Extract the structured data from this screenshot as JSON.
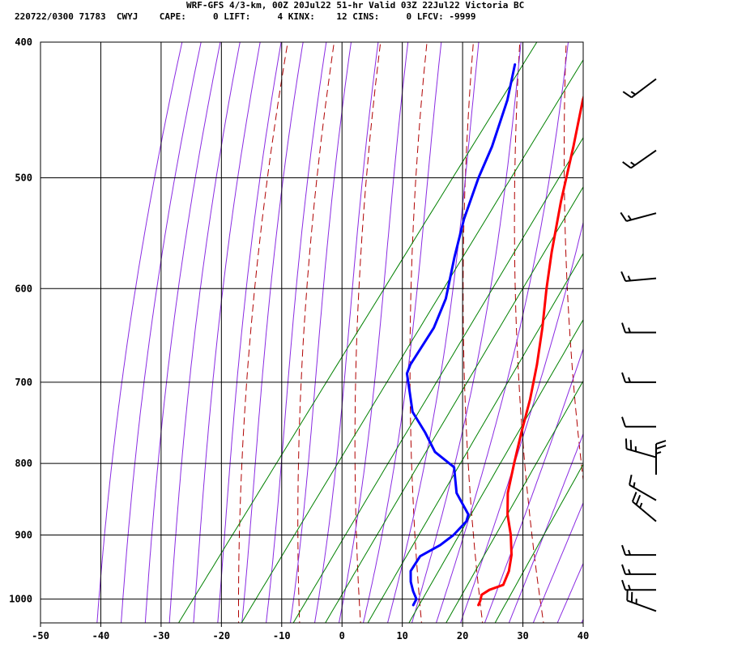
{
  "header": {
    "line1": "WRF-GFS 4/3-km, 00Z 20Jul22 51-hr Valid 03Z 22Jul22 Victoria BC",
    "line2": "220722/0300 71783  CWYJ    CAPE:     0 LIFT:     4 KINX:    12 CINS:     0 LFCV: -9999"
  },
  "chart_data": {
    "type": "line",
    "xlim": [
      -50,
      40
    ],
    "ylim": [
      1040,
      400
    ],
    "y_scale": "log",
    "x_ticks": [
      -50,
      -40,
      -30,
      -20,
      -10,
      0,
      10,
      20,
      30,
      40
    ],
    "y_ticks": [
      400,
      500,
      600,
      700,
      800,
      900,
      1000
    ],
    "grid": true,
    "series": [
      {
        "color": "#ff0000",
        "points": [
          [
            -25.0,
            415
          ],
          [
            -22.5,
            440
          ],
          [
            -18.5,
            475
          ],
          [
            -14.0,
            520
          ],
          [
            -9.5,
            565
          ],
          [
            -6.0,
            600
          ],
          [
            -2.0,
            640
          ],
          [
            1.5,
            680
          ],
          [
            4.5,
            720
          ],
          [
            7.0,
            760
          ],
          [
            9.5,
            800
          ],
          [
            12.0,
            840
          ],
          [
            14.5,
            870
          ],
          [
            17.5,
            900
          ],
          [
            20.0,
            930
          ],
          [
            21.5,
            955
          ],
          [
            22.2,
            977
          ],
          [
            20.5,
            985
          ],
          [
            19.8,
            993
          ],
          [
            20.3,
            1003
          ],
          [
            20.5,
            1010
          ]
        ]
      },
      {
        "color": "#0000ff",
        "points": [
          [
            -38.0,
            415
          ],
          [
            -35.0,
            440
          ],
          [
            -32.0,
            475
          ],
          [
            -30.5,
            500
          ],
          [
            -28.0,
            535
          ],
          [
            -25.0,
            570
          ],
          [
            -21.5,
            610
          ],
          [
            -20.0,
            640
          ],
          [
            -19.5,
            680
          ],
          [
            -19.0,
            690
          ],
          [
            -16.5,
            710
          ],
          [
            -13.5,
            735
          ],
          [
            -9.0,
            760
          ],
          [
            -5.0,
            785
          ],
          [
            0.0,
            805
          ],
          [
            3.5,
            840
          ],
          [
            8.0,
            870
          ],
          [
            8.5,
            880
          ],
          [
            8.0,
            900
          ],
          [
            7.0,
            915
          ],
          [
            5.0,
            932
          ],
          [
            5.2,
            955
          ],
          [
            6.5,
            972
          ],
          [
            8.0,
            987
          ],
          [
            9.5,
            1000
          ],
          [
            9.7,
            1010
          ]
        ]
      }
    ],
    "wind_barbs": [
      {
        "p": 425,
        "dir": 233,
        "spd": 15
      },
      {
        "p": 478,
        "dir": 235,
        "spd": 15
      },
      {
        "p": 530,
        "dir": 255,
        "spd": 15
      },
      {
        "p": 590,
        "dir": 265,
        "spd": 15
      },
      {
        "p": 645,
        "dir": 270,
        "spd": 15
      },
      {
        "p": 700,
        "dir": 270,
        "spd": 15
      },
      {
        "p": 753,
        "dir": 270,
        "spd": 10
      },
      {
        "p": 792,
        "dir": 286,
        "spd": 25
      },
      {
        "p": 815,
        "dir": 0,
        "spd": 25
      },
      {
        "p": 850,
        "dir": 300,
        "spd": 15
      },
      {
        "p": 880,
        "dir": 310,
        "spd": 25
      },
      {
        "p": 930,
        "dir": 270,
        "spd": 15
      },
      {
        "p": 960,
        "dir": 270,
        "spd": 15
      },
      {
        "p": 985,
        "dir": 270,
        "spd": 15
      },
      {
        "p": 1020,
        "dir": 290,
        "spd": 25
      }
    ],
    "colors": {
      "isotherm": "#000000",
      "dry_adiabat": "#b00000",
      "moist_adiabat": "#8a2be2",
      "mixing_ratio": "#008000",
      "temperature": "#ff0000",
      "dewpoint": "#0000ff",
      "barb": "#000000"
    }
  }
}
